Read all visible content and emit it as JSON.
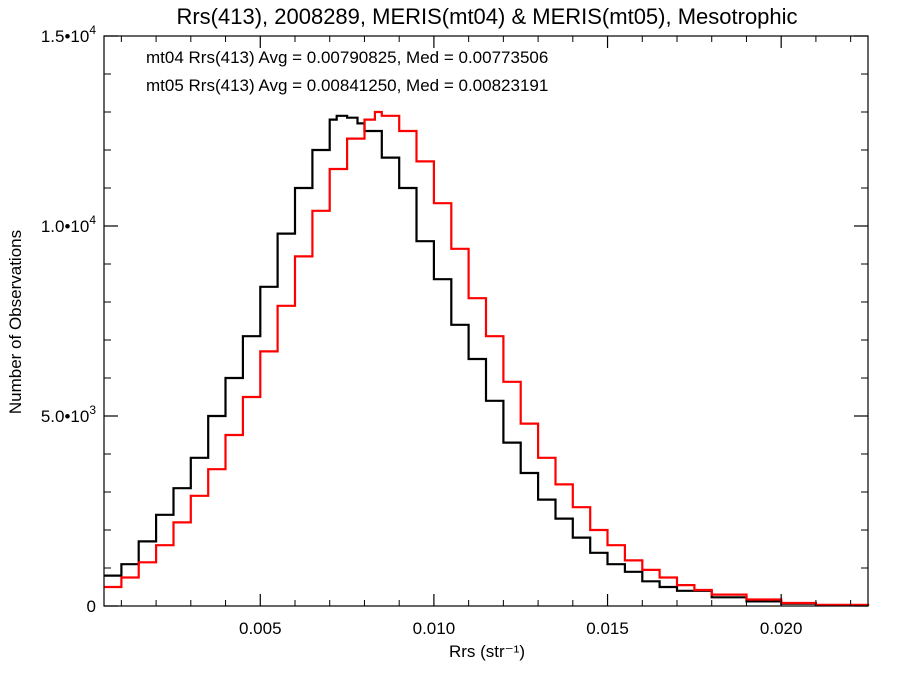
{
  "chart_data": {
    "type": "line",
    "title": "Rrs(413), 2008289, MERIS(mt04) & MERIS(mt05), Mesotrophic",
    "xlabel": "Rrs (str⁻¹)",
    "ylabel": "Number of Observations",
    "xlim": [
      0.0005,
      0.0225
    ],
    "ylim": [
      0,
      15000
    ],
    "x_ticks": [
      0.005,
      0.01,
      0.015,
      0.02
    ],
    "x_tick_labels": [
      "0.005",
      "0.010",
      "0.015",
      "0.020"
    ],
    "y_ticks": [
      0,
      5000,
      10000,
      15000
    ],
    "y_tick_labels": [
      {
        "mant": "0",
        "exp": ""
      },
      {
        "mant": "5.0•10",
        "exp": "3"
      },
      {
        "mant": "1.0•10",
        "exp": "4"
      },
      {
        "mant": "1.5•10",
        "exp": "4"
      }
    ],
    "grid": false,
    "legend_position": "top-left",
    "series": [
      {
        "name": "mt04",
        "label": "mt04 Rrs(413) Avg = 0.00790825, Med = 0.00773506",
        "color": "#000000",
        "x": [
          0.0005,
          0.001,
          0.0015,
          0.002,
          0.0025,
          0.003,
          0.0035,
          0.004,
          0.0045,
          0.005,
          0.0055,
          0.006,
          0.0065,
          0.007,
          0.0072,
          0.0075,
          0.0078,
          0.008,
          0.0085,
          0.009,
          0.0095,
          0.01,
          0.0105,
          0.011,
          0.0115,
          0.012,
          0.0125,
          0.013,
          0.0135,
          0.014,
          0.0145,
          0.015,
          0.0155,
          0.016,
          0.0165,
          0.017,
          0.018,
          0.019,
          0.02,
          0.021,
          0.0225
        ],
        "y": [
          800,
          1100,
          1700,
          2400,
          3100,
          3900,
          5000,
          6000,
          7100,
          8400,
          9800,
          11000,
          12000,
          12800,
          12900,
          12850,
          12700,
          12500,
          11800,
          11000,
          9600,
          8600,
          7400,
          6500,
          5400,
          4300,
          3500,
          2800,
          2300,
          1800,
          1400,
          1100,
          900,
          650,
          500,
          400,
          230,
          120,
          60,
          20,
          0
        ]
      },
      {
        "name": "mt05",
        "label": "mt05 Rrs(413) Avg = 0.00841250, Med = 0.00823191",
        "color": "#ff0000",
        "x": [
          0.0005,
          0.001,
          0.0015,
          0.002,
          0.0025,
          0.003,
          0.0035,
          0.004,
          0.0045,
          0.005,
          0.0055,
          0.006,
          0.0065,
          0.007,
          0.0075,
          0.008,
          0.0083,
          0.0085,
          0.009,
          0.0095,
          0.01,
          0.0105,
          0.011,
          0.0115,
          0.012,
          0.0125,
          0.013,
          0.0135,
          0.014,
          0.0145,
          0.015,
          0.0155,
          0.016,
          0.0165,
          0.017,
          0.0175,
          0.018,
          0.019,
          0.02,
          0.021,
          0.0225
        ],
        "y": [
          500,
          750,
          1150,
          1600,
          2200,
          2900,
          3600,
          4500,
          5500,
          6700,
          7900,
          9200,
          10400,
          11500,
          12300,
          12800,
          13000,
          12900,
          12500,
          11700,
          10600,
          9400,
          8100,
          7100,
          5900,
          4800,
          3900,
          3200,
          2600,
          2000,
          1600,
          1200,
          950,
          750,
          550,
          420,
          300,
          170,
          80,
          30,
          0
        ]
      }
    ]
  }
}
